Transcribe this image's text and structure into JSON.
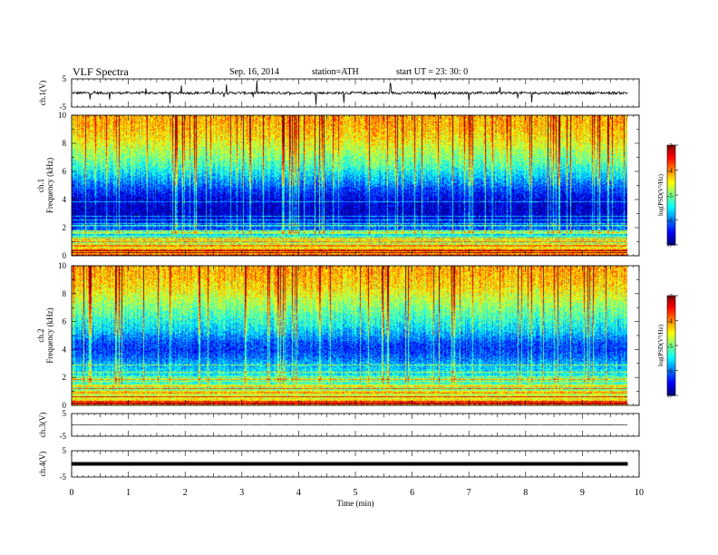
{
  "header": {
    "title": "VLF  Spectra",
    "date": "Sep. 16, 2014",
    "station": "station=ATH",
    "start": "start  UT  =   23: 30: 0"
  },
  "chart_data": [
    {
      "type": "line",
      "panel": "ch1-waveform",
      "ylabel": "ch.1(V)",
      "ylim": [
        -5,
        5
      ],
      "yticks": [
        "5",
        "-5"
      ],
      "x_range_min": [
        0,
        10
      ],
      "data_extent_min": [
        0,
        9.8
      ],
      "description_values": {
        "baseline_V": 0.0,
        "typical_spike_amplitude_V": 2.5
      },
      "color": "#000000"
    },
    {
      "type": "heatmap",
      "panel": "ch1-spectrogram",
      "ylabel": "ch.1\nFrequency  (kHz)",
      "ylim": [
        0,
        10
      ],
      "yticks": [
        "0",
        "2",
        "4",
        "6",
        "8",
        "10"
      ],
      "x_range_min": [
        0,
        10
      ],
      "data_extent_min": [
        0,
        9.8
      ],
      "colorbar": {
        "label": "log(PSD(V²/Hz)",
        "range": [
          -7,
          -3
        ],
        "ticks": [
          "-7",
          "-6",
          "-5",
          "-4",
          "-3"
        ]
      },
      "mean_log_psd_profile": [
        {
          "f_kHz": 0.0,
          "v": -4.0
        },
        {
          "f_kHz": 0.5,
          "v": -4.3
        },
        {
          "f_kHz": 1.0,
          "v": -5.1
        },
        {
          "f_kHz": 1.5,
          "v": -5.6
        },
        {
          "f_kHz": 2.0,
          "v": -6.2
        },
        {
          "f_kHz": 2.5,
          "v": -6.5
        },
        {
          "f_kHz": 3.0,
          "v": -6.7
        },
        {
          "f_kHz": 3.5,
          "v": -6.7
        },
        {
          "f_kHz": 4.0,
          "v": -6.6
        },
        {
          "f_kHz": 4.5,
          "v": -6.4
        },
        {
          "f_kHz": 5.0,
          "v": -6.1
        },
        {
          "f_kHz": 5.5,
          "v": -5.8
        },
        {
          "f_kHz": 6.0,
          "v": -5.5
        },
        {
          "f_kHz": 6.5,
          "v": -5.2
        },
        {
          "f_kHz": 7.0,
          "v": -5.0
        },
        {
          "f_kHz": 7.5,
          "v": -4.8
        },
        {
          "f_kHz": 8.0,
          "v": -4.6
        },
        {
          "f_kHz": 8.5,
          "v": -4.4
        },
        {
          "f_kHz": 9.0,
          "v": -4.3
        },
        {
          "f_kHz": 9.5,
          "v": -4.2
        },
        {
          "f_kHz": 10.0,
          "v": -4.2
        }
      ]
    },
    {
      "type": "heatmap",
      "panel": "ch2-spectrogram",
      "ylabel": "ch.2\nFrequency  (kHz)",
      "ylim": [
        0,
        10
      ],
      "yticks": [
        "0",
        "2",
        "4",
        "6",
        "8",
        "10"
      ],
      "x_range_min": [
        0,
        10
      ],
      "data_extent_min": [
        0,
        9.8
      ],
      "colorbar": {
        "label": "log(PSD(V²/Hz)",
        "range": [
          -7,
          -3
        ],
        "ticks": [
          "-7",
          "-6",
          "-5",
          "-4",
          "-3"
        ]
      },
      "mean_log_psd_profile": [
        {
          "f_kHz": 0.0,
          "v": -4.2
        },
        {
          "f_kHz": 0.5,
          "v": -4.5
        },
        {
          "f_kHz": 1.0,
          "v": -4.9
        },
        {
          "f_kHz": 1.5,
          "v": -5.2
        },
        {
          "f_kHz": 2.0,
          "v": -5.4
        },
        {
          "f_kHz": 2.5,
          "v": -5.6
        },
        {
          "f_kHz": 3.0,
          "v": -5.8
        },
        {
          "f_kHz": 3.5,
          "v": -6.1
        },
        {
          "f_kHz": 4.0,
          "v": -6.3
        },
        {
          "f_kHz": 4.5,
          "v": -6.2
        },
        {
          "f_kHz": 5.0,
          "v": -5.9
        },
        {
          "f_kHz": 5.5,
          "v": -5.6
        },
        {
          "f_kHz": 6.0,
          "v": -5.4
        },
        {
          "f_kHz": 6.5,
          "v": -5.2
        },
        {
          "f_kHz": 7.0,
          "v": -5.0
        },
        {
          "f_kHz": 7.5,
          "v": -4.8
        },
        {
          "f_kHz": 8.0,
          "v": -4.6
        },
        {
          "f_kHz": 8.5,
          "v": -4.4
        },
        {
          "f_kHz": 9.0,
          "v": -4.3
        },
        {
          "f_kHz": 9.5,
          "v": -4.2
        },
        {
          "f_kHz": 10.0,
          "v": -4.2
        }
      ]
    },
    {
      "type": "line",
      "panel": "ch3-waveform",
      "ylabel": "ch.3(V)",
      "ylim": [
        -5,
        5
      ],
      "yticks": [
        "5",
        "-5"
      ],
      "x_range_min": [
        0,
        10
      ],
      "data_extent_min": [
        0,
        9.8
      ],
      "description_values": {
        "baseline_V": 0.0
      },
      "color": "#000000"
    },
    {
      "type": "line",
      "panel": "ch4-waveform",
      "ylabel": "ch.4(V)",
      "ylim": [
        -5,
        5
      ],
      "yticks": [
        "5",
        "-5"
      ],
      "x_range_min": [
        0,
        10
      ],
      "data_extent_min": [
        0,
        9.8
      ],
      "description_values": {
        "baseline_V": 0.0
      },
      "color": "#000000"
    }
  ],
  "xaxis": {
    "label": "Time  (min)",
    "ticks": [
      "0",
      "1",
      "2",
      "3",
      "4",
      "5",
      "6",
      "7",
      "8",
      "9",
      "10"
    ]
  }
}
